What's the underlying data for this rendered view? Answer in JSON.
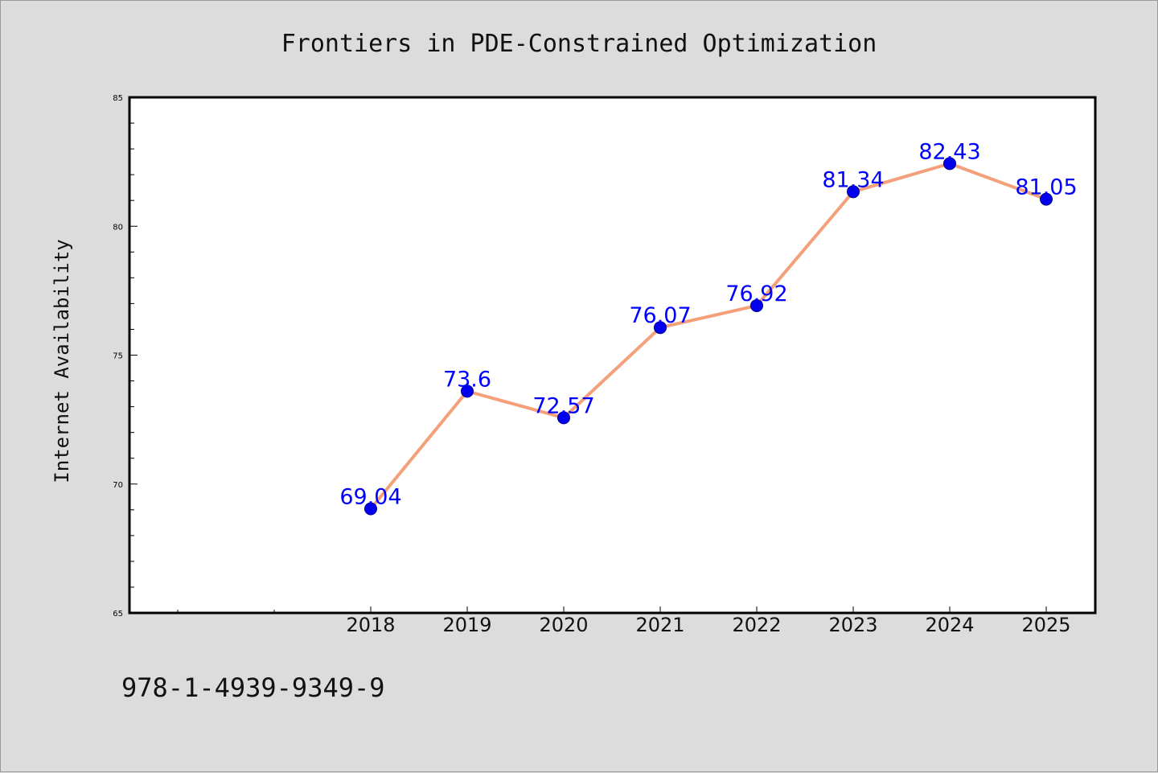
{
  "chart_data": {
    "type": "line",
    "title": "Frontiers in PDE-Constrained Optimization",
    "xlabel": "",
    "ylabel": "Internet Availability",
    "categories": [
      "2018",
      "2019",
      "2020",
      "2021",
      "2022",
      "2023",
      "2024",
      "2025"
    ],
    "values": [
      69.04,
      73.6,
      72.57,
      76.07,
      76.92,
      81.34,
      82.43,
      81.05
    ],
    "ylim": [
      65,
      85
    ],
    "yticks": [
      "65",
      "70",
      "75",
      "80",
      "85"
    ],
    "grid": false,
    "legend": "none",
    "colors": {
      "line": "#f4a07a",
      "marker": "#0000ee",
      "marker_edge": "#00008b",
      "data_label": "#0000ff",
      "plot_bg": "#ffffff",
      "page_bg": "#dcdcdc"
    }
  },
  "footer": {
    "isbn": "978-1-4939-9349-9"
  }
}
